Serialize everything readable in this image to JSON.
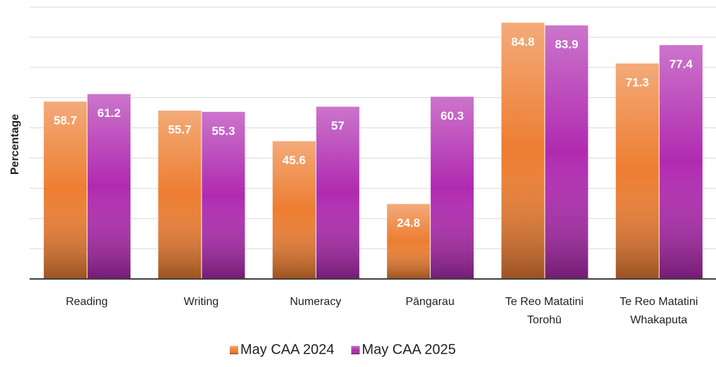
{
  "chart_data": {
    "type": "bar",
    "y_label": "Percentage",
    "categories": [
      "Reading",
      "Writing",
      "Numeracy",
      "Pāngarau",
      "Te Reo Matatini Torohū",
      "Te Reo Matatini Whakaputa"
    ],
    "series": [
      {
        "name": "May CAA 2024",
        "color": "#ed7d31",
        "values": [
          58.7,
          55.7,
          45.6,
          24.8,
          84.8,
          71.3
        ]
      },
      {
        "name": "May CAA 2025",
        "color": "#b02ab0",
        "values": [
          61.2,
          55.3,
          57,
          60.3,
          83.9,
          77.4
        ]
      }
    ],
    "ylim": [
      0,
      90
    ],
    "yticks": [
      0,
      10,
      20,
      30,
      40,
      50,
      60,
      70,
      80,
      90
    ],
    "grid": true,
    "legend": "bottom"
  }
}
